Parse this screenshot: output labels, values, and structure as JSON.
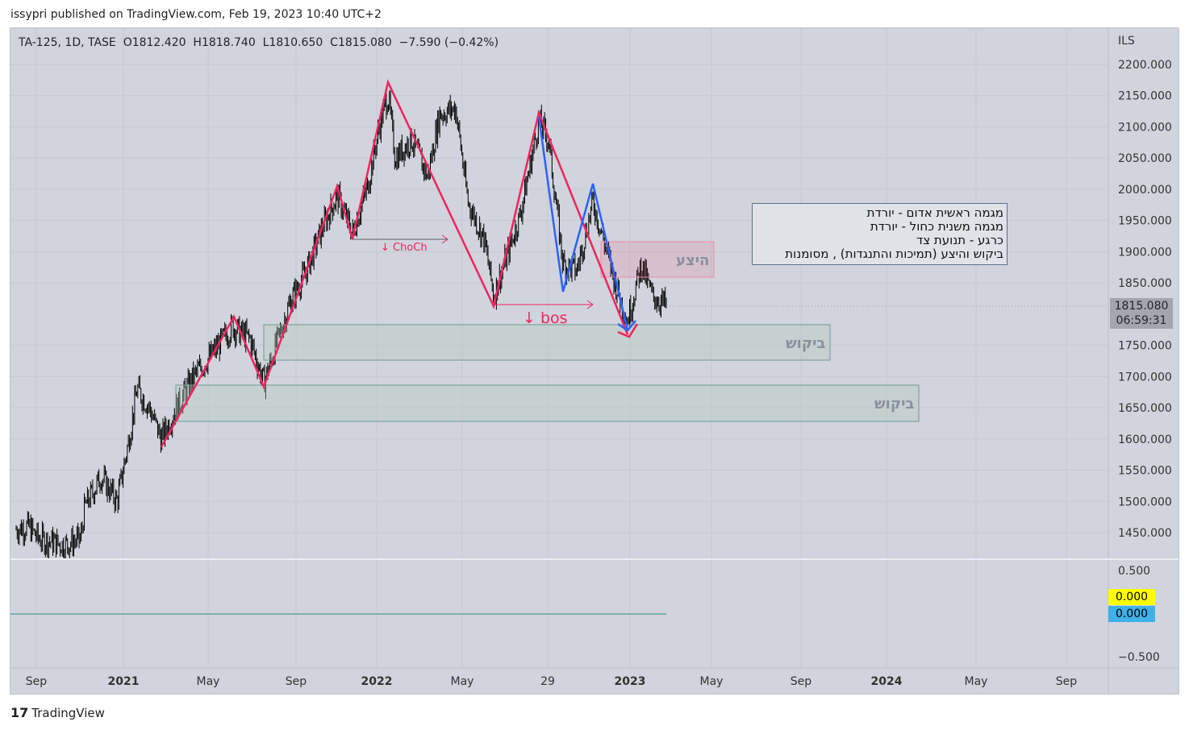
{
  "header": {
    "published": "issypri published on TradingView.com, Feb 19, 2023 10:40 UTC+2"
  },
  "legend": {
    "symbol": "TA-125, 1D, TASE",
    "open": "O1812.420",
    "high": "H1818.740",
    "low": "L1810.650",
    "close": "C1815.080",
    "change": "−7.590 (−0.42%)"
  },
  "price_axis": {
    "currency": "ILS",
    "ticks": [
      "2200.000",
      "2150.000",
      "2100.000",
      "2050.000",
      "2000.000",
      "1950.000",
      "1900.000",
      "1850.000",
      "1750.000",
      "1700.000",
      "1650.000",
      "1600.000",
      "1550.000",
      "1500.000",
      "1450.000"
    ],
    "last_price": "1815.080",
    "countdown": "06:59:31"
  },
  "indicator_axis": {
    "ticks": [
      "0.500",
      "−0.500"
    ],
    "value_yellow": "0.000",
    "value_blue": "0.000",
    "yellow": "#ffff00",
    "blue": "#3fb0e8"
  },
  "time_axis": [
    "Sep",
    "2021",
    "May",
    "Sep",
    "2022",
    "May",
    "29",
    "2023",
    "May",
    "Sep",
    "2024",
    "May",
    "Sep"
  ],
  "annotations": {
    "choch": "↓ ChoCh",
    "bos": "↓ bos",
    "supply": "היצע",
    "demand1": "ביקוש",
    "demand2": "ביקוש",
    "notes": [
      "מגמה ראשית אדום - יורדת",
      "מגמה משנית כחול - יורדת",
      "כרגע - תנועת צד",
      "ביקוש והיצע (תמיכות והתנגדות) , מסומנות"
    ]
  },
  "colors": {
    "red": "#f0245e",
    "blue": "#2962ff",
    "bg": "#d1d4dc"
  },
  "chart_data": {
    "type": "candlestick",
    "title": "TA-125, 1D, TASE",
    "ylabel": "ILS",
    "ylim": [
      1450,
      2200
    ],
    "x": [
      2020.576,
      2020.624,
      2020.666,
      2020.768,
      2020.831,
      2020.847,
      2020.911,
      2020.975,
      2021.022,
      2021.054,
      2021.102,
      2021.15,
      2021.197,
      2021.277,
      2021.357,
      2021.43,
      2021.5,
      2021.554,
      2021.611,
      2021.659,
      2021.723,
      2021.787,
      2021.844,
      2021.904,
      2021.962,
      2022.01,
      2022.045,
      2022.073,
      2022.137,
      2022.201,
      2022.248,
      2022.312,
      2022.36,
      2022.424,
      2022.462,
      2022.503,
      2022.567,
      2022.64,
      2022.678,
      2022.736,
      2022.79,
      2022.854,
      2022.901,
      2022.949,
      2022.99,
      2023.045,
      2023.086,
      2023.14
    ],
    "close": [
      1455,
      1460,
      1440,
      1430,
      1440,
      1490,
      1540,
      1500,
      1600,
      1680,
      1650,
      1600,
      1640,
      1700,
      1740,
      1780,
      1760,
      1690,
      1760,
      1820,
      1870,
      1940,
      1990,
      1930,
      2000,
      2100,
      2150,
      2050,
      2080,
      2020,
      2120,
      2130,
      1980,
      1920,
      1830,
      1880,
      1960,
      2110,
      2080,
      1880,
      1870,
      1980,
      1910,
      1840,
      1790,
      1880,
      1830,
      1815
    ]
  }
}
